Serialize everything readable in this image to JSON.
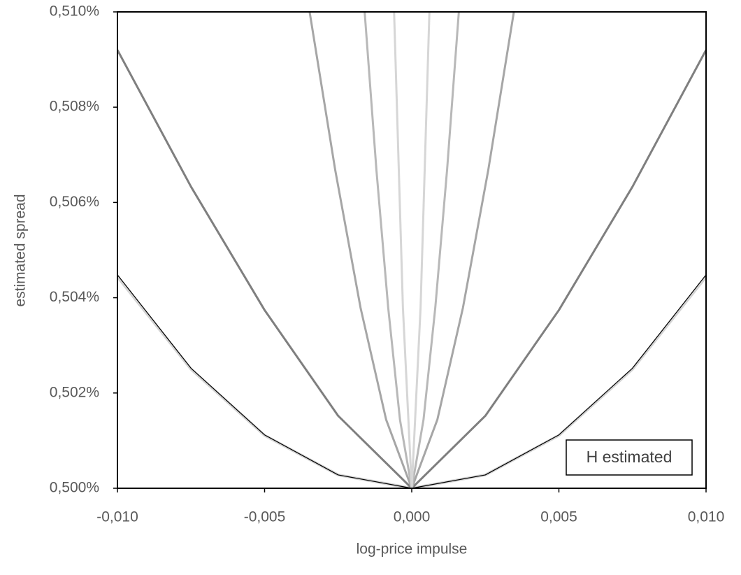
{
  "chart_data": {
    "type": "line",
    "xlabel": "log-price impulse",
    "ylabel": "estimated spread",
    "annotation": "H estimated",
    "xlim": [
      -0.01,
      0.01
    ],
    "ylim": [
      0.5,
      0.51
    ],
    "xticks": [
      {
        "value": -0.01,
        "label": "-0,010"
      },
      {
        "value": -0.005,
        "label": "-0,005"
      },
      {
        "value": 0,
        "label": "0,000"
      },
      {
        "value": 0.005,
        "label": "0,005"
      },
      {
        "value": 0.01,
        "label": "0,010"
      }
    ],
    "yticks": [
      {
        "value": 0.5,
        "label": "0,500%"
      },
      {
        "value": 0.502,
        "label": "0,502%"
      },
      {
        "value": 0.504,
        "label": "0,504%"
      },
      {
        "value": 0.506,
        "label": "0,506%"
      },
      {
        "value": 0.508,
        "label": "0,508%"
      },
      {
        "value": 0.51,
        "label": "0,510%"
      }
    ],
    "series": [
      {
        "color": "#d4d4d4",
        "width": 4,
        "x": [
          -0.01,
          -0.0075,
          -0.005,
          -0.0025,
          0,
          0.0025,
          0.005,
          0.0075,
          0.01
        ],
        "values": [
          0.50444,
          0.5025,
          0.50111,
          0.50028,
          0.5,
          0.50028,
          0.50111,
          0.5025,
          0.50444
        ]
      },
      {
        "color": "#000000",
        "width": 1.2,
        "x": [
          -0.01,
          -0.0075,
          -0.005,
          -0.0025,
          0,
          0.0025,
          0.005,
          0.0075,
          0.01
        ],
        "values": [
          0.50448,
          0.50252,
          0.50112,
          0.50028,
          0.5,
          0.50028,
          0.50112,
          0.50252,
          0.50448
        ]
      },
      {
        "color": "#7f7f7f",
        "width": 3,
        "x": [
          -0.01,
          -0.0075,
          -0.005,
          -0.0025,
          0,
          0.0025,
          0.005,
          0.0075,
          0.01
        ],
        "values": [
          0.5092,
          0.50633,
          0.50374,
          0.50152,
          0.5,
          0.50152,
          0.50374,
          0.50633,
          0.5092
        ]
      },
      {
        "color": "#a6a6a6",
        "width": 3,
        "x": [
          -0.00347,
          -0.0026,
          -0.00174,
          -0.00087,
          0,
          0.00087,
          0.00174,
          0.0026,
          0.00347
        ],
        "values": [
          0.51,
          0.50668,
          0.50379,
          0.50144,
          0.5,
          0.50144,
          0.50379,
          0.50668,
          0.51
        ]
      },
      {
        "color": "#b8b8b8",
        "width": 3,
        "x": [
          -0.0016,
          -0.0012,
          -0.0008,
          -0.0004,
          0,
          0.0004,
          0.0008,
          0.0012,
          0.0016
        ],
        "values": [
          0.51,
          0.50668,
          0.50379,
          0.50144,
          0.5,
          0.50144,
          0.50379,
          0.50668,
          0.51
        ]
      },
      {
        "color": "#d6d6d6",
        "width": 3,
        "x": [
          -0.0006,
          -0.0003,
          0,
          0.0003,
          0.0006
        ],
        "values": [
          0.51,
          0.50379,
          0.5,
          0.50379,
          0.51
        ]
      }
    ]
  }
}
